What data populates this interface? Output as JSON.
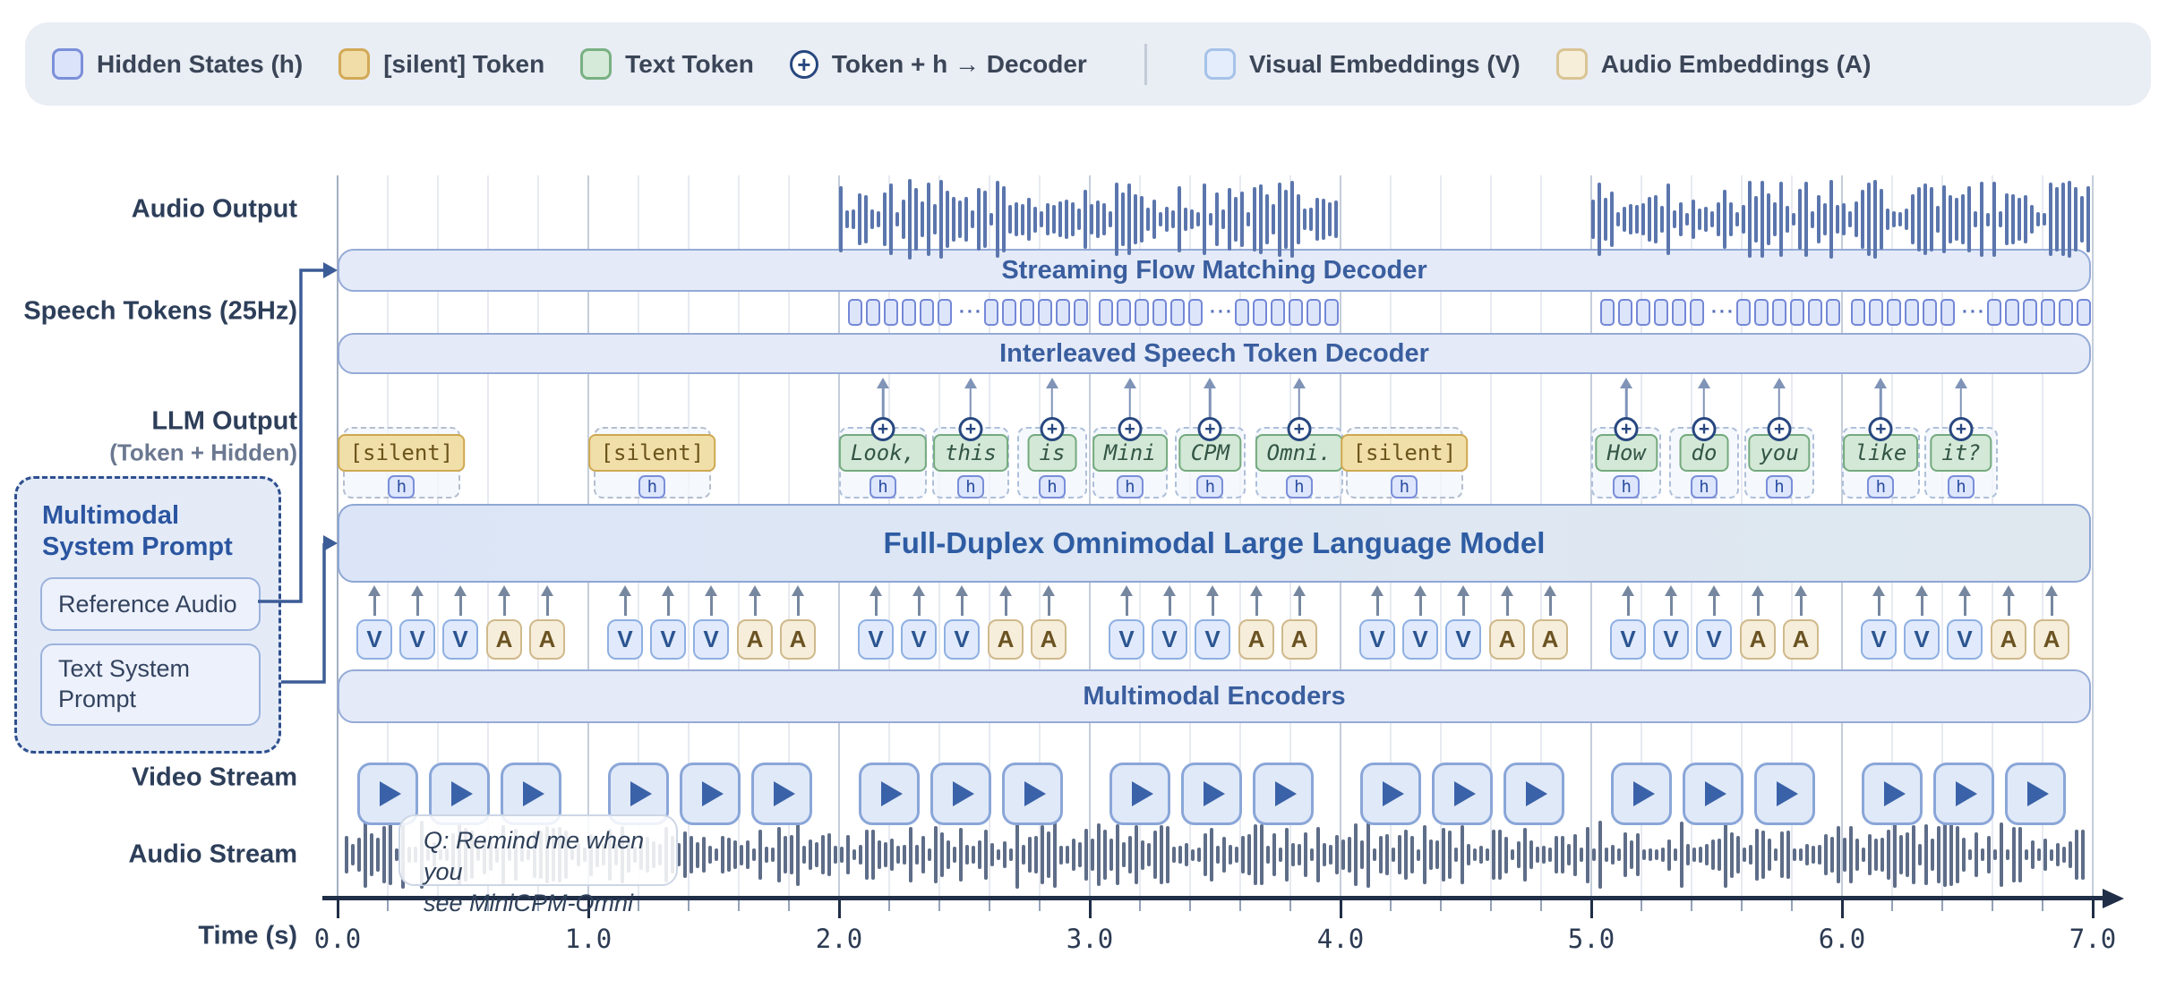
{
  "legend": {
    "items": [
      {
        "label": "Hidden States (h)",
        "swatch": "hidden-states",
        "fill": "#dbe3fb",
        "border": "#7b8fd9"
      },
      {
        "label": "[silent] Token",
        "swatch": "silent-token",
        "fill": "#f0dda8",
        "border": "#d2a957"
      },
      {
        "label": "Text Token",
        "swatch": "text-token",
        "fill": "#d5ead8",
        "border": "#79b083"
      },
      {
        "label": "Token + h → Decoder",
        "swatch": "plus-icon"
      },
      {
        "label": "Visual Embeddings (V)",
        "swatch": "visual-embeddings",
        "fill": "#e4edfb",
        "border": "#a6c2e8"
      },
      {
        "label": "Audio Embeddings (A)",
        "swatch": "audio-embeddings",
        "fill": "#f6eed9",
        "border": "#d9c494"
      }
    ],
    "divider_after_index": 3
  },
  "rows": {
    "audio_output": "Audio Output",
    "speech_tokens": "Speech Tokens (25Hz)",
    "llm_output": "LLM Output",
    "llm_output_sub": "(Token + Hidden)",
    "video_stream": "Video Stream",
    "audio_stream": "Audio Stream"
  },
  "bars": {
    "streaming": "Streaming Flow Matching Decoder",
    "interleaved": "Interleaved Speech Token Decoder",
    "llm": "Full-Duplex Omnimodal Large Language Model",
    "encoders": "Multimodal Encoders"
  },
  "prompt": {
    "title": "Multimodal System Prompt",
    "items": [
      {
        "label": "Reference Audio"
      },
      {
        "label": "Text System Prompt"
      }
    ]
  },
  "bubble": {
    "line1": "Q: Remind me when you",
    "line2": "see MiniCPM-Omni"
  },
  "axis": {
    "label": "Time (s)",
    "min": 0,
    "max": 7,
    "minor_step": 0.2,
    "tick_labels": [
      "0.0",
      "1.0",
      "2.0",
      "3.0",
      "4.0",
      "5.0",
      "6.0",
      "7.0"
    ]
  },
  "timeline": {
    "h_label": "h",
    "dots": "···",
    "llm_tokens": [
      {
        "label": "[silent]",
        "type": "silent",
        "start": 0.02,
        "width": 0.47
      },
      {
        "label": "[silent]",
        "type": "silent",
        "start": 1.02,
        "width": 0.47
      },
      {
        "label": "Look,",
        "type": "text",
        "start": 2.0,
        "width": 0.35
      },
      {
        "label": "this",
        "type": "text",
        "start": 2.37,
        "width": 0.31
      },
      {
        "label": "is",
        "type": "text",
        "start": 2.71,
        "width": 0.28
      },
      {
        "label": "Mini",
        "type": "text",
        "start": 3.01,
        "width": 0.3
      },
      {
        "label": "CPM",
        "type": "text",
        "start": 3.34,
        "width": 0.28
      },
      {
        "label": "Omni.",
        "type": "text",
        "start": 3.66,
        "width": 0.35
      },
      {
        "label": "[silent]",
        "type": "silent",
        "start": 4.02,
        "width": 0.47
      },
      {
        "label": "How",
        "type": "text",
        "start": 5.0,
        "width": 0.28
      },
      {
        "label": "do",
        "type": "text",
        "start": 5.31,
        "width": 0.28
      },
      {
        "label": "you",
        "type": "text",
        "start": 5.61,
        "width": 0.28
      },
      {
        "label": "like",
        "type": "text",
        "start": 6.0,
        "width": 0.31
      },
      {
        "label": "it?",
        "type": "text",
        "start": 6.33,
        "width": 0.29
      }
    ],
    "speech_token_groups": [
      {
        "start": 2,
        "boxes_per_side": 6
      },
      {
        "start": 3,
        "boxes_per_side": 6
      },
      {
        "start": 5,
        "boxes_per_side": 6
      },
      {
        "start": 6,
        "boxes_per_side": 6
      }
    ],
    "audio_output_segments": [
      {
        "start": 2.0,
        "end": 4.0
      },
      {
        "start": 5.0,
        "end": 7.0
      }
    ],
    "audio_stream_segment": {
      "start": 0.03,
      "end": 7.0
    },
    "embedding_pattern": [
      "V",
      "V",
      "V",
      "A",
      "A"
    ],
    "video_frames_per_second": 3,
    "seconds": [
      0,
      1,
      2,
      3,
      4,
      5,
      6
    ]
  },
  "colors": {
    "audio_output_wave": "#5b76ad",
    "audio_stream_wave": "#5e6d88",
    "grid_minor": "#e7eaf1",
    "grid_major": "#c4cdda",
    "grid_zero": "#a2aec2",
    "connector": "#3b5c96",
    "axis": "#202e47"
  }
}
